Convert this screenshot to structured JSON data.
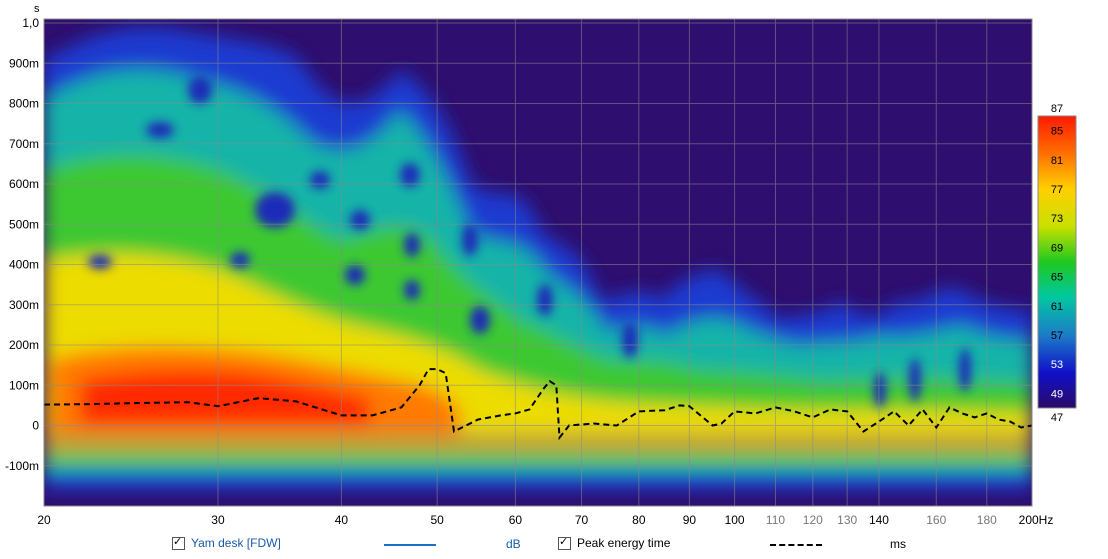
{
  "chart_data": {
    "type": "heatmap",
    "title": "",
    "ylabel": "s",
    "xlabel": "",
    "x_unit": "Hz",
    "xscale": "log",
    "xlim": [
      20,
      200
    ],
    "ylim": [
      -0.2,
      1.0
    ],
    "x_ticks": [
      "20",
      "30",
      "40",
      "50",
      "60",
      "70",
      "80",
      "90",
      "100",
      "110",
      "120",
      "130",
      "140",
      "160",
      "180",
      "200Hz"
    ],
    "y_ticks": [
      "1,0",
      "900m",
      "800m",
      "700m",
      "600m",
      "500m",
      "400m",
      "300m",
      "200m",
      "100m",
      "0",
      "-100m"
    ],
    "colorbar": {
      "min": 47,
      "max": 87,
      "ticks": [
        "87",
        "85",
        "81",
        "77",
        "73",
        "69",
        "65",
        "61",
        "57",
        "53",
        "49",
        "47"
      ]
    },
    "series": [
      {
        "name": "Peak energy time",
        "style": "dashed",
        "color": "#000000",
        "x": [
          20,
          22,
          25,
          28,
          30,
          33,
          36,
          40,
          43,
          46,
          48,
          49,
          50,
          51,
          52,
          55,
          58,
          60,
          62,
          64,
          65,
          66,
          66.5,
          68,
          72,
          76,
          80,
          85,
          88,
          90,
          95,
          97,
          100,
          105,
          110,
          115,
          120,
          125,
          130,
          135,
          140,
          145,
          150,
          155,
          160,
          165,
          170,
          175,
          180,
          185,
          190,
          195,
          200
        ],
        "y": [
          0.052,
          0.053,
          0.056,
          0.058,
          0.048,
          0.068,
          0.06,
          0.025,
          0.025,
          0.045,
          0.1,
          0.14,
          0.14,
          0.13,
          -0.015,
          0.015,
          0.025,
          0.03,
          0.04,
          0.09,
          0.11,
          0.1,
          -0.03,
          0.0,
          0.005,
          0.0,
          0.035,
          0.038,
          0.05,
          0.048,
          0.0,
          0.005,
          0.035,
          0.03,
          0.045,
          0.035,
          0.02,
          0.04,
          0.035,
          -0.015,
          0.01,
          0.035,
          0.0,
          0.04,
          -0.005,
          0.045,
          0.03,
          0.02,
          0.03,
          0.015,
          0.01,
          -0.005,
          0.0
        ]
      }
    ],
    "legend": [
      {
        "label": "Yam desk [FDW]",
        "unit": "dB",
        "checked": true,
        "color": "#1f6fc4",
        "style": "solid"
      },
      {
        "label": "Peak energy time",
        "unit": "ms",
        "checked": true,
        "color": "#000000",
        "style": "dashed"
      }
    ]
  }
}
